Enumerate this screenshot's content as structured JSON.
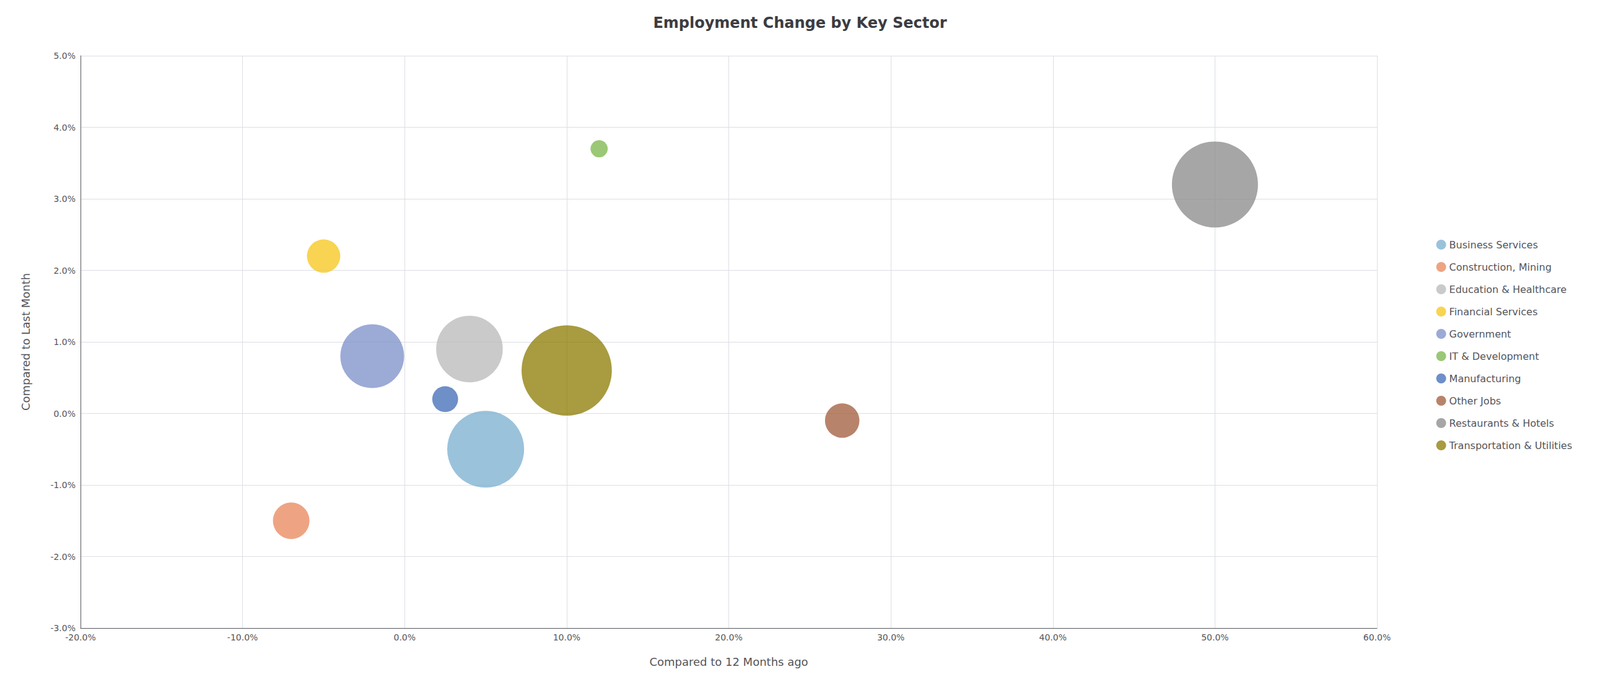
{
  "chart_data": {
    "type": "scatter",
    "title": "Employment Change by Key Sector",
    "xlabel": "Compared to 12 Months ago",
    "ylabel": "Compared to Last Month",
    "series": [
      {
        "name": "Business Services",
        "color": "#7aadcf",
        "x": [
          0.05
        ],
        "values": [
          -0.005
        ],
        "size": [
          8000
        ]
      },
      {
        "name": "Construction, Mining",
        "color": "#e8855a",
        "x": [
          -0.07
        ],
        "values": [
          -0.015
        ],
        "size": [
          1800
        ]
      },
      {
        "name": "Education & Healthcare",
        "color": "#b8b8b8",
        "x": [
          0.04
        ],
        "values": [
          0.009
        ],
        "size": [
          6000
        ]
      },
      {
        "name": "Financial Services",
        "color": "#f5c518",
        "x": [
          -0.05
        ],
        "values": [
          0.022
        ],
        "size": [
          1500
        ]
      },
      {
        "name": "Government",
        "color": "#7b8ec8",
        "x": [
          -0.02
        ],
        "values": [
          0.008
        ],
        "size": [
          5500
        ]
      },
      {
        "name": "IT & Development",
        "color": "#7ab648",
        "x": [
          0.12
        ],
        "values": [
          0.037
        ],
        "size": [
          400
        ]
      },
      {
        "name": "Manufacturing",
        "color": "#3d6ab5",
        "x": [
          0.025
        ],
        "values": [
          0.002
        ],
        "size": [
          900
        ]
      },
      {
        "name": "Other Jobs",
        "color": "#a0593a",
        "x": [
          0.27
        ],
        "values": [
          -0.001
        ],
        "size": [
          1600
        ]
      },
      {
        "name": "Restaurants & Hotels",
        "color": "#888888",
        "x": [
          0.5
        ],
        "values": [
          0.032
        ],
        "size": [
          10000
        ]
      },
      {
        "name": "Transportation & Utilities",
        "color": "#8b7a00",
        "x": [
          0.1
        ],
        "values": [
          0.006
        ],
        "size": [
          11000
        ]
      }
    ],
    "xlim": [
      -0.2,
      0.6
    ],
    "ylim": [
      -0.03,
      0.05
    ],
    "xticks": [
      {
        "value": -0.2,
        "label": "-20.0%"
      },
      {
        "value": -0.1,
        "label": "-10.0%"
      },
      {
        "value": 0.0,
        "label": "0.0%"
      },
      {
        "value": 0.1,
        "label": "10.0%"
      },
      {
        "value": 0.2,
        "label": "20.0%"
      },
      {
        "value": 0.3,
        "label": "30.0%"
      },
      {
        "value": 0.4,
        "label": "40.0%"
      },
      {
        "value": 0.5,
        "label": "50.0%"
      },
      {
        "value": 0.6,
        "label": "60.0%"
      }
    ],
    "yticks": [
      {
        "value": -0.03,
        "label": "-3.0%"
      },
      {
        "value": -0.02,
        "label": "-2.0%"
      },
      {
        "value": -0.01,
        "label": "-1.0%"
      },
      {
        "value": 0.0,
        "label": "0.0%"
      },
      {
        "value": 0.01,
        "label": "1.0%"
      },
      {
        "value": 0.02,
        "label": "2.0%"
      },
      {
        "value": 0.03,
        "label": "3.0%"
      },
      {
        "value": 0.04,
        "label": "4.0%"
      },
      {
        "value": 0.05,
        "label": "5.0%"
      }
    ],
    "grid": true,
    "legend": "right"
  }
}
